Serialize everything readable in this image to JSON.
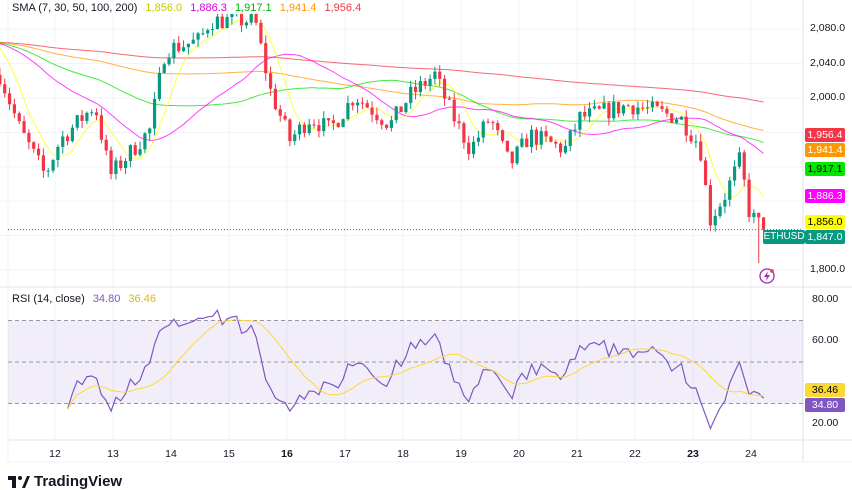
{
  "main_legend": {
    "label": "SMA (7, 30, 50, 100, 200)",
    "values": [
      "1,856.0",
      "1,886.3",
      "1,917.1",
      "1,941.4",
      "1,956.4"
    ]
  },
  "rsi_legend": {
    "label": "RSI (14, close)",
    "rsi": "34.80",
    "ma": "36.46"
  },
  "symbol": "ETHUSD",
  "brand": "TradingView",
  "colors": {
    "up": "#089981",
    "down": "#f23645",
    "sma7": "#ffff00",
    "sma30": "#ff00ff",
    "sma50": "#00e600",
    "sma100": "#ff9800",
    "sma200": "#f23645",
    "rsi": "#7e57c2",
    "rsi_ma": "#fdd835"
  },
  "price_badges": [
    {
      "value": "1,956.4",
      "price": 1956.4,
      "color": "#f23645",
      "text": "#fff"
    },
    {
      "value": "1,941.4",
      "price": 1941.4,
      "color": "#ff9800",
      "text": "#fff"
    },
    {
      "value": "1,917.1",
      "price": 1917.1,
      "color": "#00e600",
      "text": "#000"
    },
    {
      "value": "1,886.3",
      "price": 1886.3,
      "color": "#ff00ff",
      "text": "#fff"
    },
    {
      "value": "1,856.0",
      "price": 1856.0,
      "color": "#ffff00",
      "text": "#000"
    },
    {
      "value": "1,847.0",
      "price": 1847.0,
      "color": "#089981",
      "text": "#fff"
    }
  ],
  "price_axis": [
    {
      "label": "2,080.0",
      "v": 2080
    },
    {
      "label": "2,040.0",
      "v": 2040
    },
    {
      "label": "2,000.0",
      "v": 2000
    },
    {
      "label": "1,800.0",
      "v": 1800
    }
  ],
  "rsi_axis": [
    {
      "label": "80.00",
      "v": 80
    },
    {
      "label": "60.00",
      "v": 60
    },
    {
      "label": "20.00",
      "v": 20
    }
  ],
  "rsi_badges": [
    {
      "value": "36.46",
      "v": 36.46,
      "color": "#fdd835",
      "text": "#000"
    },
    {
      "value": "34.80",
      "v": 34.8,
      "color": "#7e57c2",
      "text": "#fff"
    }
  ],
  "chart_data": {
    "type": "candlestick",
    "title": "ETHUSD",
    "timeframe_hours": 2,
    "x_ticks": [
      "12",
      "13",
      "14",
      "15",
      "16",
      "17",
      "18",
      "19",
      "20",
      "21",
      "22",
      "23",
      "24"
    ],
    "x_range_days": [
      11.05,
      24.45
    ],
    "ylim": [
      1780,
      2100
    ],
    "close_path": [
      [
        11.05,
        2027
      ],
      [
        11.4,
        1963
      ],
      [
        11.83,
        1910
      ],
      [
        12.09,
        1951
      ],
      [
        12.69,
        1992
      ],
      [
        12.95,
        1910
      ],
      [
        13.64,
        1963
      ],
      [
        13.9,
        2056
      ],
      [
        14.5,
        2067
      ],
      [
        14.67,
        2090
      ],
      [
        15.45,
        2090
      ],
      [
        15.71,
        2009
      ],
      [
        16.05,
        1951
      ],
      [
        16.4,
        1977
      ],
      [
        16.74,
        1963
      ],
      [
        17.17,
        2003
      ],
      [
        17.78,
        1969
      ],
      [
        18.12,
        2003
      ],
      [
        18.55,
        2027
      ],
      [
        18.81,
        1986
      ],
      [
        19.16,
        1940
      ],
      [
        19.5,
        1977
      ],
      [
        19.84,
        1922
      ],
      [
        20.19,
        1957
      ],
      [
        20.79,
        1940
      ],
      [
        21.05,
        1977
      ],
      [
        21.91,
        1992
      ],
      [
        22.78,
        1977
      ],
      [
        23.12,
        1945
      ],
      [
        23.29,
        1858
      ],
      [
        23.55,
        1887
      ],
      [
        23.81,
        1928
      ],
      [
        23.98,
        1864
      ],
      [
        24.24,
        1847
      ]
    ],
    "sma_periods": [
      7,
      30,
      50,
      100,
      200
    ],
    "rsi": {
      "period": 14,
      "ma_period": 14,
      "ylim": [
        10,
        85
      ],
      "bands": [
        70,
        50,
        30
      ],
      "last": 34.8,
      "ma_last": 36.46
    }
  }
}
